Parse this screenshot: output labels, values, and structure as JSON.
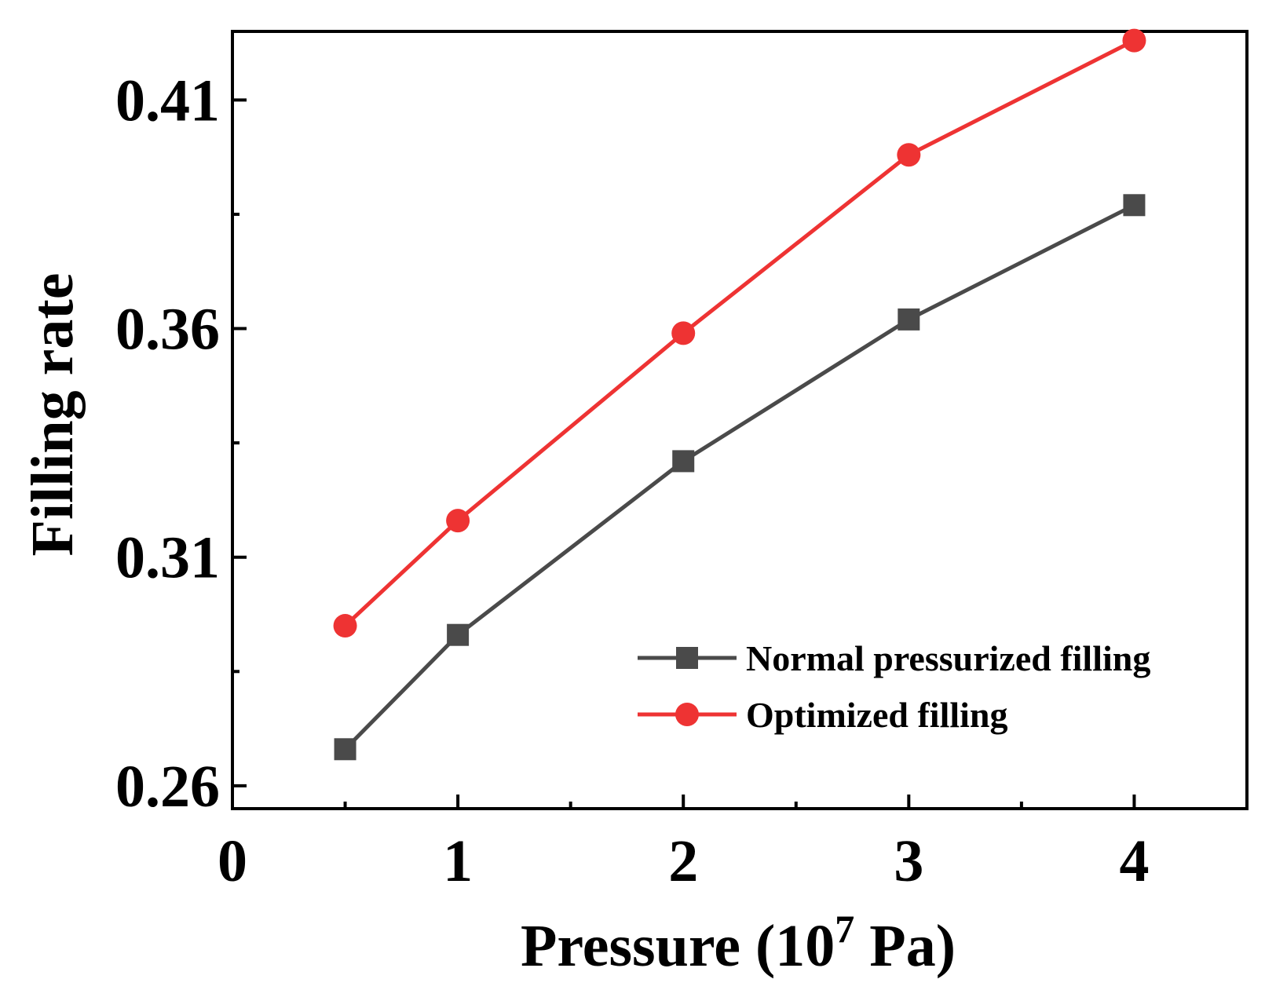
{
  "chart_data": {
    "type": "line",
    "xlabel": {
      "main": "Pressure (10",
      "superscript": "7",
      "suffix": " Pa)"
    },
    "ylabel": "Filling rate",
    "xlim": [
      0,
      4.5
    ],
    "ylim": [
      0.255,
      0.425
    ],
    "xticks": [
      0,
      1,
      2,
      3,
      4
    ],
    "xtick_labels": [
      "0",
      "1",
      "2",
      "3",
      "4"
    ],
    "yticks": [
      0.26,
      0.31,
      0.36,
      0.41
    ],
    "ytick_labels": [
      "0.26",
      "0.31",
      "0.36",
      "0.41"
    ],
    "grid": false,
    "legend_position": "lower-right",
    "series": [
      {
        "name": "Normal pressurized filling",
        "color": "#4a4a4a",
        "marker": "square",
        "x": [
          0.5,
          1,
          2,
          3,
          4
        ],
        "y": [
          0.268,
          0.293,
          0.331,
          0.362,
          0.387
        ]
      },
      {
        "name": "Optimized filling",
        "color": "#ee3333",
        "marker": "circle",
        "x": [
          0.5,
          1,
          2,
          3,
          4
        ],
        "y": [
          0.295,
          0.318,
          0.359,
          0.398,
          0.423
        ]
      }
    ]
  }
}
